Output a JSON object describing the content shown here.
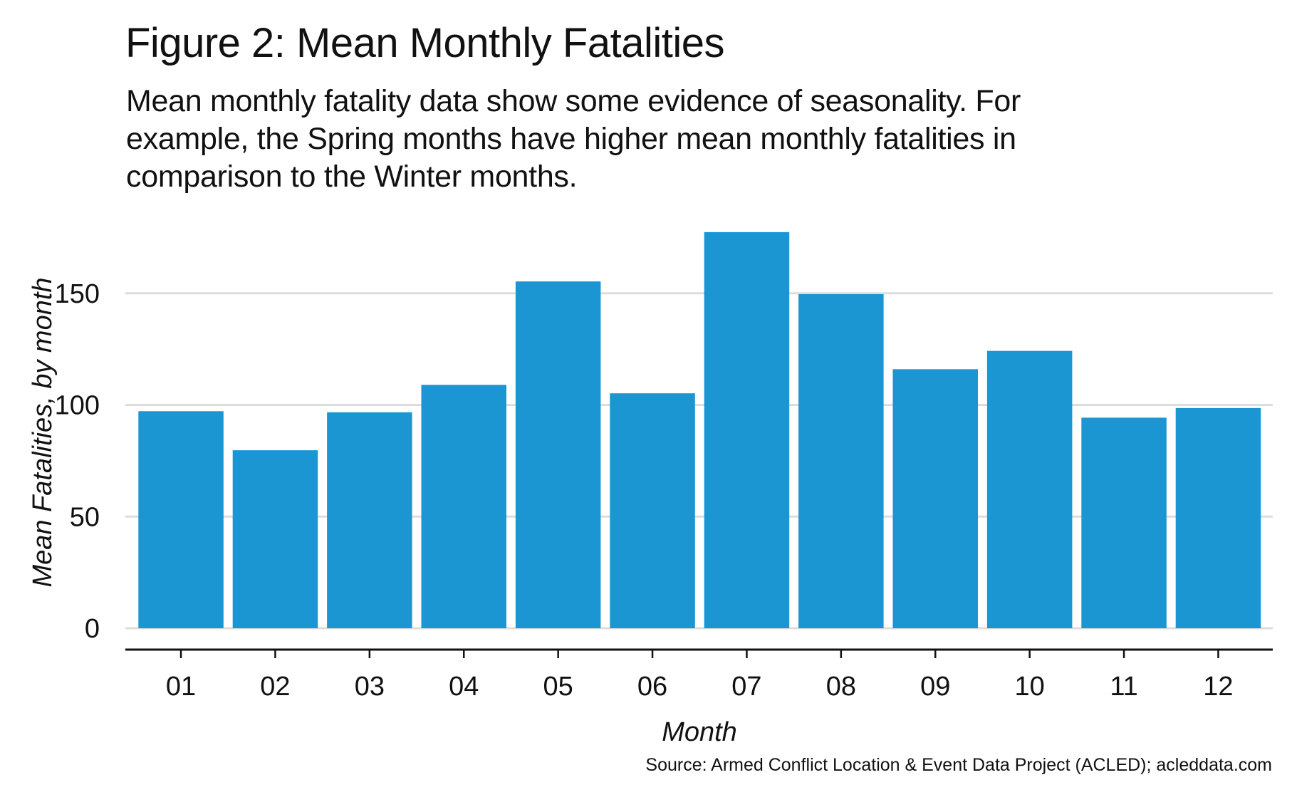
{
  "figure": {
    "title": "Figure 2: Mean Monthly Fatalities",
    "subtitle_lines": [
      "Mean monthly fatality data show some evidence of seasonality. For",
      "example, the Spring months have higher mean monthly fatalities in",
      "comparison to the Winter months."
    ],
    "source": "Source: Armed Conflict Location & Event Data Project (ACLED); acleddata.com"
  },
  "chart_data": {
    "type": "bar",
    "title": "Figure 2: Mean Monthly Fatalities",
    "subtitle": "Mean monthly fatality data show some evidence of seasonality. For example, the Spring months have higher mean monthly fatalities in comparison to the Winter months.",
    "xlabel": "Month",
    "ylabel": "Mean Fatalities, by month",
    "categories": [
      "01",
      "02",
      "03",
      "04",
      "05",
      "06",
      "07",
      "08",
      "09",
      "10",
      "11",
      "12"
    ],
    "values": [
      97.2,
      79.7,
      96.7,
      109.0,
      155.3,
      105.2,
      177.4,
      149.6,
      116.0,
      124.2,
      94.3,
      98.6
    ],
    "yticks": [
      0,
      50,
      100,
      150
    ],
    "ytick_labels": [
      "0",
      "50",
      "100",
      "150"
    ],
    "ylim": [
      0,
      180
    ],
    "grid": "horizontal major",
    "legend": "none",
    "bar_color": "#1B96D2",
    "grid_color": "#DDDDDD",
    "axis_color": "#111111",
    "source": "Source: Armed Conflict Location & Event Data Project (ACLED); acleddata.com"
  }
}
